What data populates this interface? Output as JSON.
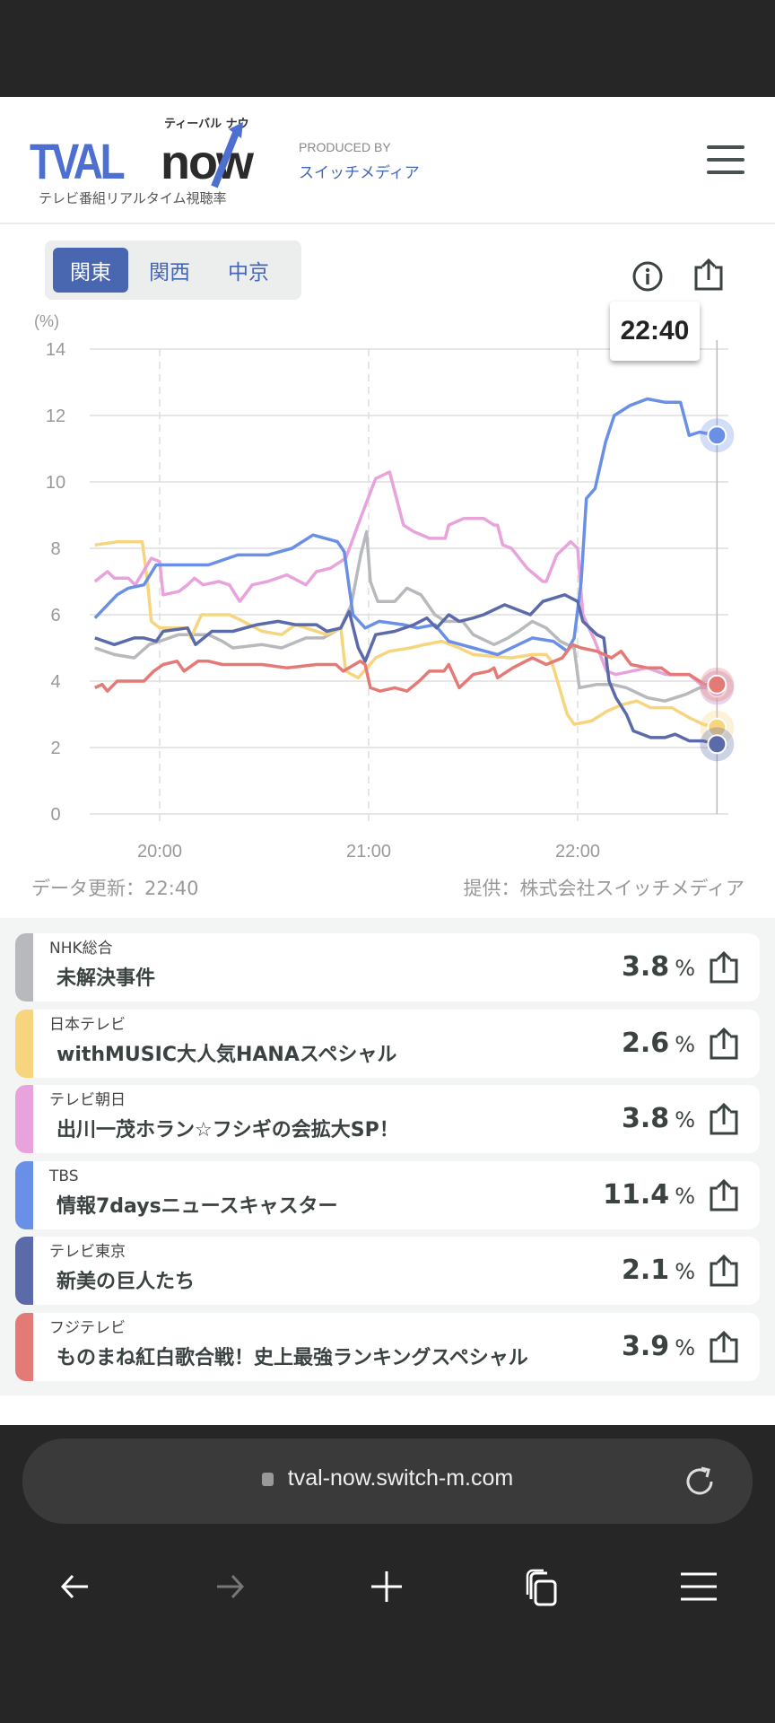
{
  "header": {
    "logo": {
      "main": "TVAL",
      "now": "now",
      "kana": "ティーバル ナウ",
      "subtitle": "テレビ番組リアルタイム視聴率"
    },
    "produced_by": "PRODUCED BY",
    "company": "スイッチメディア"
  },
  "regions": [
    {
      "label": "関東",
      "active": true
    },
    {
      "label": "関西",
      "active": false
    },
    {
      "label": "中京",
      "active": false
    }
  ],
  "tooltip": "22:40",
  "meta": {
    "updated": "データ更新：22:40",
    "provider": "提供：株式会社スイッチメディア"
  },
  "chart_data": {
    "type": "line",
    "ylabel": "(%)",
    "ylim": [
      0,
      14
    ],
    "yticks": [
      "0",
      "2",
      "4",
      "6",
      "8",
      "10",
      "12",
      "14"
    ],
    "x_unit": "minutes after 19:40",
    "xlim": [
      0,
      180
    ],
    "xticks": [
      {
        "t": 20,
        "label": "20:00"
      },
      {
        "t": 80,
        "label": "21:00"
      },
      {
        "t": 140,
        "label": "22:00"
      }
    ],
    "cursor": {
      "t": 180,
      "label": "22:40"
    },
    "grid": true,
    "series": [
      {
        "name": "NHK総合",
        "color": "#b7b9bd",
        "points": [
          [
            1.4,
            5.0
          ],
          [
            7,
            4.8
          ],
          [
            12.7,
            4.7
          ],
          [
            17,
            5.1
          ],
          [
            20,
            5.2
          ],
          [
            25.4,
            5.4
          ],
          [
            34,
            5.4
          ],
          [
            38,
            5.2
          ],
          [
            41,
            5.0
          ],
          [
            49.4,
            5.1
          ],
          [
            55,
            5.0
          ],
          [
            62,
            5.3
          ],
          [
            67,
            5.3
          ],
          [
            72,
            5.6
          ],
          [
            75,
            6.3
          ],
          [
            77.7,
            7.8
          ],
          [
            79.4,
            8.5
          ],
          [
            80.5,
            7.0
          ],
          [
            82.6,
            6.4
          ],
          [
            87.5,
            6.4
          ],
          [
            91,
            6.8
          ],
          [
            95,
            6.6
          ],
          [
            99,
            6.0
          ],
          [
            102,
            5.8
          ],
          [
            107,
            5.8
          ],
          [
            110,
            5.4
          ],
          [
            116,
            5.1
          ],
          [
            120,
            5.3
          ],
          [
            123,
            5.5
          ],
          [
            127,
            5.8
          ],
          [
            131,
            5.6
          ],
          [
            135,
            5.2
          ],
          [
            139,
            5.0
          ],
          [
            140.5,
            3.8
          ],
          [
            145.5,
            3.9
          ],
          [
            150,
            3.9
          ],
          [
            154,
            3.8
          ],
          [
            160,
            3.5
          ],
          [
            165,
            3.4
          ],
          [
            171,
            3.6
          ],
          [
            175,
            3.8
          ],
          [
            180,
            3.8
          ]
        ]
      },
      {
        "name": "日本テレビ",
        "color": "#f7d57e",
        "points": [
          [
            1.4,
            8.1
          ],
          [
            8,
            8.2
          ],
          [
            15,
            8.2
          ],
          [
            16.5,
            7.0
          ],
          [
            17.6,
            5.8
          ],
          [
            20,
            5.6
          ],
          [
            28,
            5.6
          ],
          [
            29,
            5.3
          ],
          [
            32,
            6.0
          ],
          [
            40,
            6.0
          ],
          [
            44,
            5.8
          ],
          [
            49.4,
            5.5
          ],
          [
            55,
            5.4
          ],
          [
            59,
            5.7
          ],
          [
            65,
            5.5
          ],
          [
            68,
            5.4
          ],
          [
            72,
            5.6
          ],
          [
            73.4,
            4.3
          ],
          [
            77,
            4.1
          ],
          [
            82,
            4.7
          ],
          [
            86,
            4.9
          ],
          [
            92,
            5.0
          ],
          [
            96,
            5.1
          ],
          [
            101,
            5.2
          ],
          [
            106,
            5.0
          ],
          [
            110,
            4.8
          ],
          [
            121,
            4.7
          ],
          [
            127,
            4.8
          ],
          [
            131,
            4.8
          ],
          [
            132.5,
            4.6
          ],
          [
            137,
            3.0
          ],
          [
            139,
            2.7
          ],
          [
            144,
            2.8
          ],
          [
            148.5,
            3.1
          ],
          [
            153,
            3.3
          ],
          [
            157,
            3.4
          ],
          [
            161,
            3.2
          ],
          [
            167,
            3.2
          ],
          [
            172,
            2.9
          ],
          [
            176,
            2.7
          ],
          [
            180,
            2.6
          ]
        ]
      },
      {
        "name": "テレビ朝日",
        "color": "#e8a3dd",
        "points": [
          [
            1.4,
            7.0
          ],
          [
            5,
            7.3
          ],
          [
            7,
            7.1
          ],
          [
            11,
            7.1
          ],
          [
            13,
            6.9
          ],
          [
            17.6,
            7.7
          ],
          [
            20,
            7.6
          ],
          [
            21,
            6.6
          ],
          [
            25.5,
            6.7
          ],
          [
            28,
            6.9
          ],
          [
            30,
            7.1
          ],
          [
            32.5,
            6.9
          ],
          [
            37,
            7.0
          ],
          [
            40,
            6.9
          ],
          [
            43,
            6.4
          ],
          [
            46.6,
            6.9
          ],
          [
            51,
            7.0
          ],
          [
            56.5,
            7.2
          ],
          [
            62,
            6.9
          ],
          [
            65,
            7.3
          ],
          [
            69,
            7.4
          ],
          [
            73.4,
            7.7
          ],
          [
            78,
            9.0
          ],
          [
            82,
            10.1
          ],
          [
            86,
            10.3
          ],
          [
            88,
            9.5
          ],
          [
            90,
            8.7
          ],
          [
            93,
            8.5
          ],
          [
            97.5,
            8.3
          ],
          [
            102,
            8.3
          ],
          [
            103,
            8.7
          ],
          [
            107.3,
            8.9
          ],
          [
            113,
            8.9
          ],
          [
            116,
            8.7
          ],
          [
            117,
            8.7
          ],
          [
            118.5,
            8.1
          ],
          [
            121,
            8.0
          ],
          [
            125.5,
            7.4
          ],
          [
            130,
            7.0
          ],
          [
            131,
            7.0
          ],
          [
            134,
            7.8
          ],
          [
            138,
            8.2
          ],
          [
            140,
            8.0
          ],
          [
            141.5,
            6.0
          ],
          [
            145,
            5.2
          ],
          [
            148.3,
            4.3
          ],
          [
            151,
            4.2
          ],
          [
            155.5,
            4.3
          ],
          [
            160,
            4.4
          ],
          [
            165.3,
            4.2
          ],
          [
            172,
            4.2
          ],
          [
            176.5,
            3.8
          ],
          [
            180,
            3.8
          ]
        ]
      },
      {
        "name": "TBS",
        "color": "#6a8fe6",
        "points": [
          [
            1.4,
            5.9
          ],
          [
            7.8,
            6.6
          ],
          [
            11,
            6.8
          ],
          [
            15.5,
            6.9
          ],
          [
            19,
            7.5
          ],
          [
            27,
            7.5
          ],
          [
            34,
            7.5
          ],
          [
            42.4,
            7.8
          ],
          [
            51,
            7.8
          ],
          [
            58,
            8.0
          ],
          [
            64,
            8.4
          ],
          [
            71,
            8.2
          ],
          [
            73,
            7.9
          ],
          [
            75.5,
            6.0
          ],
          [
            79,
            5.6
          ],
          [
            83,
            5.8
          ],
          [
            90,
            5.7
          ],
          [
            94,
            5.6
          ],
          [
            99,
            5.7
          ],
          [
            103,
            5.2
          ],
          [
            110,
            5.0
          ],
          [
            117,
            4.8
          ],
          [
            123,
            5.1
          ],
          [
            127,
            5.3
          ],
          [
            133,
            5.2
          ],
          [
            137,
            4.9
          ],
          [
            139,
            5.3
          ],
          [
            141,
            7.0
          ],
          [
            142.5,
            9.5
          ],
          [
            145,
            9.8
          ],
          [
            148,
            11.2
          ],
          [
            150.5,
            12.0
          ],
          [
            155,
            12.3
          ],
          [
            160,
            12.5
          ],
          [
            165,
            12.4
          ],
          [
            169.5,
            12.4
          ],
          [
            172,
            11.4
          ],
          [
            175,
            11.5
          ],
          [
            180,
            11.4
          ]
        ]
      },
      {
        "name": "テレビ東京",
        "color": "#5b6aa8",
        "points": [
          [
            1.4,
            5.3
          ],
          [
            7,
            5.1
          ],
          [
            12.7,
            5.3
          ],
          [
            15.5,
            5.3
          ],
          [
            19,
            5.2
          ],
          [
            21,
            5.5
          ],
          [
            28,
            5.6
          ],
          [
            30.3,
            5.1
          ],
          [
            35,
            5.5
          ],
          [
            41,
            5.5
          ],
          [
            48,
            5.7
          ],
          [
            54,
            5.8
          ],
          [
            59,
            5.7
          ],
          [
            65,
            5.7
          ],
          [
            68,
            5.5
          ],
          [
            72,
            5.6
          ],
          [
            74.4,
            6.1
          ],
          [
            77,
            5.0
          ],
          [
            79,
            4.6
          ],
          [
            82,
            5.4
          ],
          [
            87.5,
            5.5
          ],
          [
            93,
            5.7
          ],
          [
            96.7,
            5.9
          ],
          [
            99.5,
            5.6
          ],
          [
            103,
            6.0
          ],
          [
            106,
            5.8
          ],
          [
            110,
            5.9
          ],
          [
            113,
            6.0
          ],
          [
            119,
            6.3
          ],
          [
            126.4,
            6.0
          ],
          [
            130,
            6.4
          ],
          [
            136.3,
            6.6
          ],
          [
            140,
            6.4
          ],
          [
            141.5,
            5.8
          ],
          [
            145.5,
            5.4
          ],
          [
            147.5,
            5.3
          ],
          [
            149,
            4.0
          ],
          [
            151,
            3.5
          ],
          [
            154,
            3.0
          ],
          [
            156,
            2.5
          ],
          [
            161,
            2.3
          ],
          [
            165,
            2.3
          ],
          [
            168,
            2.4
          ],
          [
            172,
            2.2
          ],
          [
            176,
            2.2
          ],
          [
            180,
            2.1
          ]
        ]
      },
      {
        "name": "フジテレビ",
        "color": "#e47a75",
        "points": [
          [
            1.4,
            3.8
          ],
          [
            3.5,
            3.9
          ],
          [
            5,
            3.7
          ],
          [
            7.8,
            4.0
          ],
          [
            15.5,
            4.0
          ],
          [
            18.3,
            4.3
          ],
          [
            21,
            4.5
          ],
          [
            25,
            4.6
          ],
          [
            27,
            4.3
          ],
          [
            31,
            4.6
          ],
          [
            34,
            4.6
          ],
          [
            38,
            4.5
          ],
          [
            49.4,
            4.5
          ],
          [
            56.5,
            4.4
          ],
          [
            65,
            4.5
          ],
          [
            70.6,
            4.5
          ],
          [
            72.7,
            4.3
          ],
          [
            77.6,
            4.6
          ],
          [
            79,
            4.5
          ],
          [
            80.5,
            3.8
          ],
          [
            83.3,
            3.7
          ],
          [
            87.5,
            3.8
          ],
          [
            91,
            3.7
          ],
          [
            94.5,
            4.0
          ],
          [
            97.4,
            4.3
          ],
          [
            101.6,
            4.3
          ],
          [
            103,
            4.5
          ],
          [
            106,
            3.8
          ],
          [
            110,
            4.2
          ],
          [
            114.5,
            4.3
          ],
          [
            116,
            4.4
          ],
          [
            117,
            4.1
          ],
          [
            121.4,
            4.4
          ],
          [
            127,
            4.7
          ],
          [
            131,
            4.5
          ],
          [
            135.6,
            4.7
          ],
          [
            138.4,
            5.1
          ],
          [
            141,
            5.0
          ],
          [
            145.5,
            4.9
          ],
          [
            149.7,
            4.7
          ],
          [
            152.5,
            4.9
          ],
          [
            155.3,
            4.5
          ],
          [
            160,
            4.4
          ],
          [
            164,
            4.4
          ],
          [
            166.6,
            4.2
          ],
          [
            172,
            4.2
          ],
          [
            176.5,
            3.9
          ],
          [
            180,
            3.9
          ]
        ]
      }
    ]
  },
  "programs": [
    {
      "channel": "NHK総合",
      "title": "未解決事件",
      "rating": "3.8",
      "unit": "%",
      "color": "#b7b9bd"
    },
    {
      "channel": "日本テレビ",
      "title": "withMUSIC大人気HANAスペシャル",
      "rating": "2.6",
      "unit": "%",
      "color": "#f7d57e"
    },
    {
      "channel": "テレビ朝日",
      "title": "出川一茂ホラン☆フシギの会拡大SP！",
      "rating": "3.8",
      "unit": "%",
      "color": "#e8a3dd"
    },
    {
      "channel": "TBS",
      "title": "情報7daysニュースキャスター",
      "rating": "11.4",
      "unit": "%",
      "color": "#6a8fe6"
    },
    {
      "channel": "テレビ東京",
      "title": "新美の巨人たち",
      "rating": "2.1",
      "unit": "%",
      "color": "#5b6aa8"
    },
    {
      "channel": "フジテレビ",
      "title": "ものまね紅白歌合戦！史上最強ランキングスペシャル",
      "rating": "3.9",
      "unit": "%",
      "color": "#e47a75"
    }
  ],
  "browser": {
    "url": "tval-now.switch-m.com"
  }
}
